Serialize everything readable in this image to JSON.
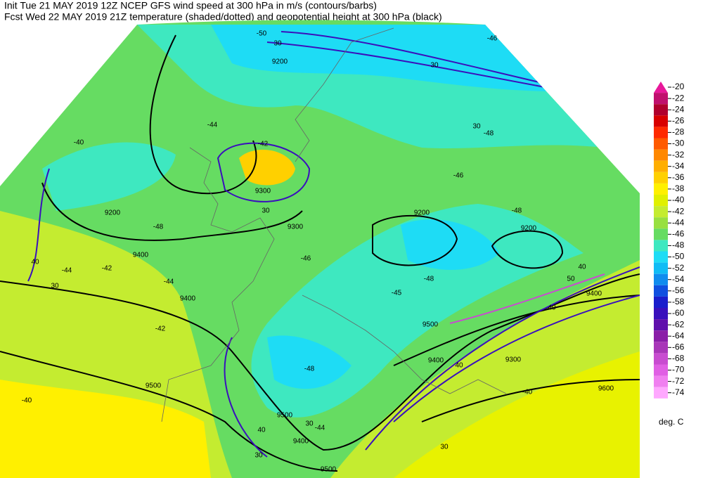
{
  "header": {
    "line1": "Init  Tue 21 MAY 2019 12Z  NCEP GFS wind speed at 300 hPa in m/s (contours/barbs)",
    "line2": "Fcst Wed 22 MAY 2019 21Z  temperature (shaded/dotted) and geopotential height at 300 hPa (black)"
  },
  "colorbar": {
    "levels": [
      -20,
      -22,
      -24,
      -26,
      -28,
      -30,
      -32,
      -34,
      -36,
      -38,
      -40,
      -42,
      -44,
      -46,
      -48,
      -50,
      -52,
      -54,
      -56,
      -58,
      -60,
      -62,
      -64,
      -66,
      -68,
      -70,
      -72,
      -74
    ],
    "colors": [
      "#e8189a",
      "#c0106e",
      "#b0002e",
      "#d80000",
      "#ff2a00",
      "#ff5a00",
      "#ff8800",
      "#ffae00",
      "#ffd000",
      "#fff000",
      "#e0f000",
      "#c4ec30",
      "#98e040",
      "#66dc62",
      "#3ee8c0",
      "#1edcf5",
      "#10bcf5",
      "#108cee",
      "#1050e0",
      "#1a1ecc",
      "#3a10bc",
      "#6010ac",
      "#8a1ea8",
      "#a836b8",
      "#c84cd0",
      "#e060e4",
      "#f080f0",
      "#ffa8ff"
    ],
    "unit": "deg. C"
  },
  "map_labels": [
    "9200",
    "30",
    "-50",
    "30",
    "-46",
    "30",
    "-48",
    "-40",
    "-44",
    "-42",
    "9200",
    "-48",
    "9300",
    "30",
    "9300",
    "9200",
    "-48",
    "9200",
    "-46",
    "-46",
    "9400",
    "40",
    "-44",
    "-42",
    "30",
    "-44",
    "9400",
    "-42",
    "-48",
    "-45",
    "9500",
    "40",
    "50",
    "9400",
    "40",
    "9400",
    "40",
    "9300",
    "-48",
    "9500",
    "-40",
    "9500",
    "30",
    "-44",
    "40",
    "9400",
    "30",
    "30",
    "9500",
    "9600",
    "-40"
  ]
}
